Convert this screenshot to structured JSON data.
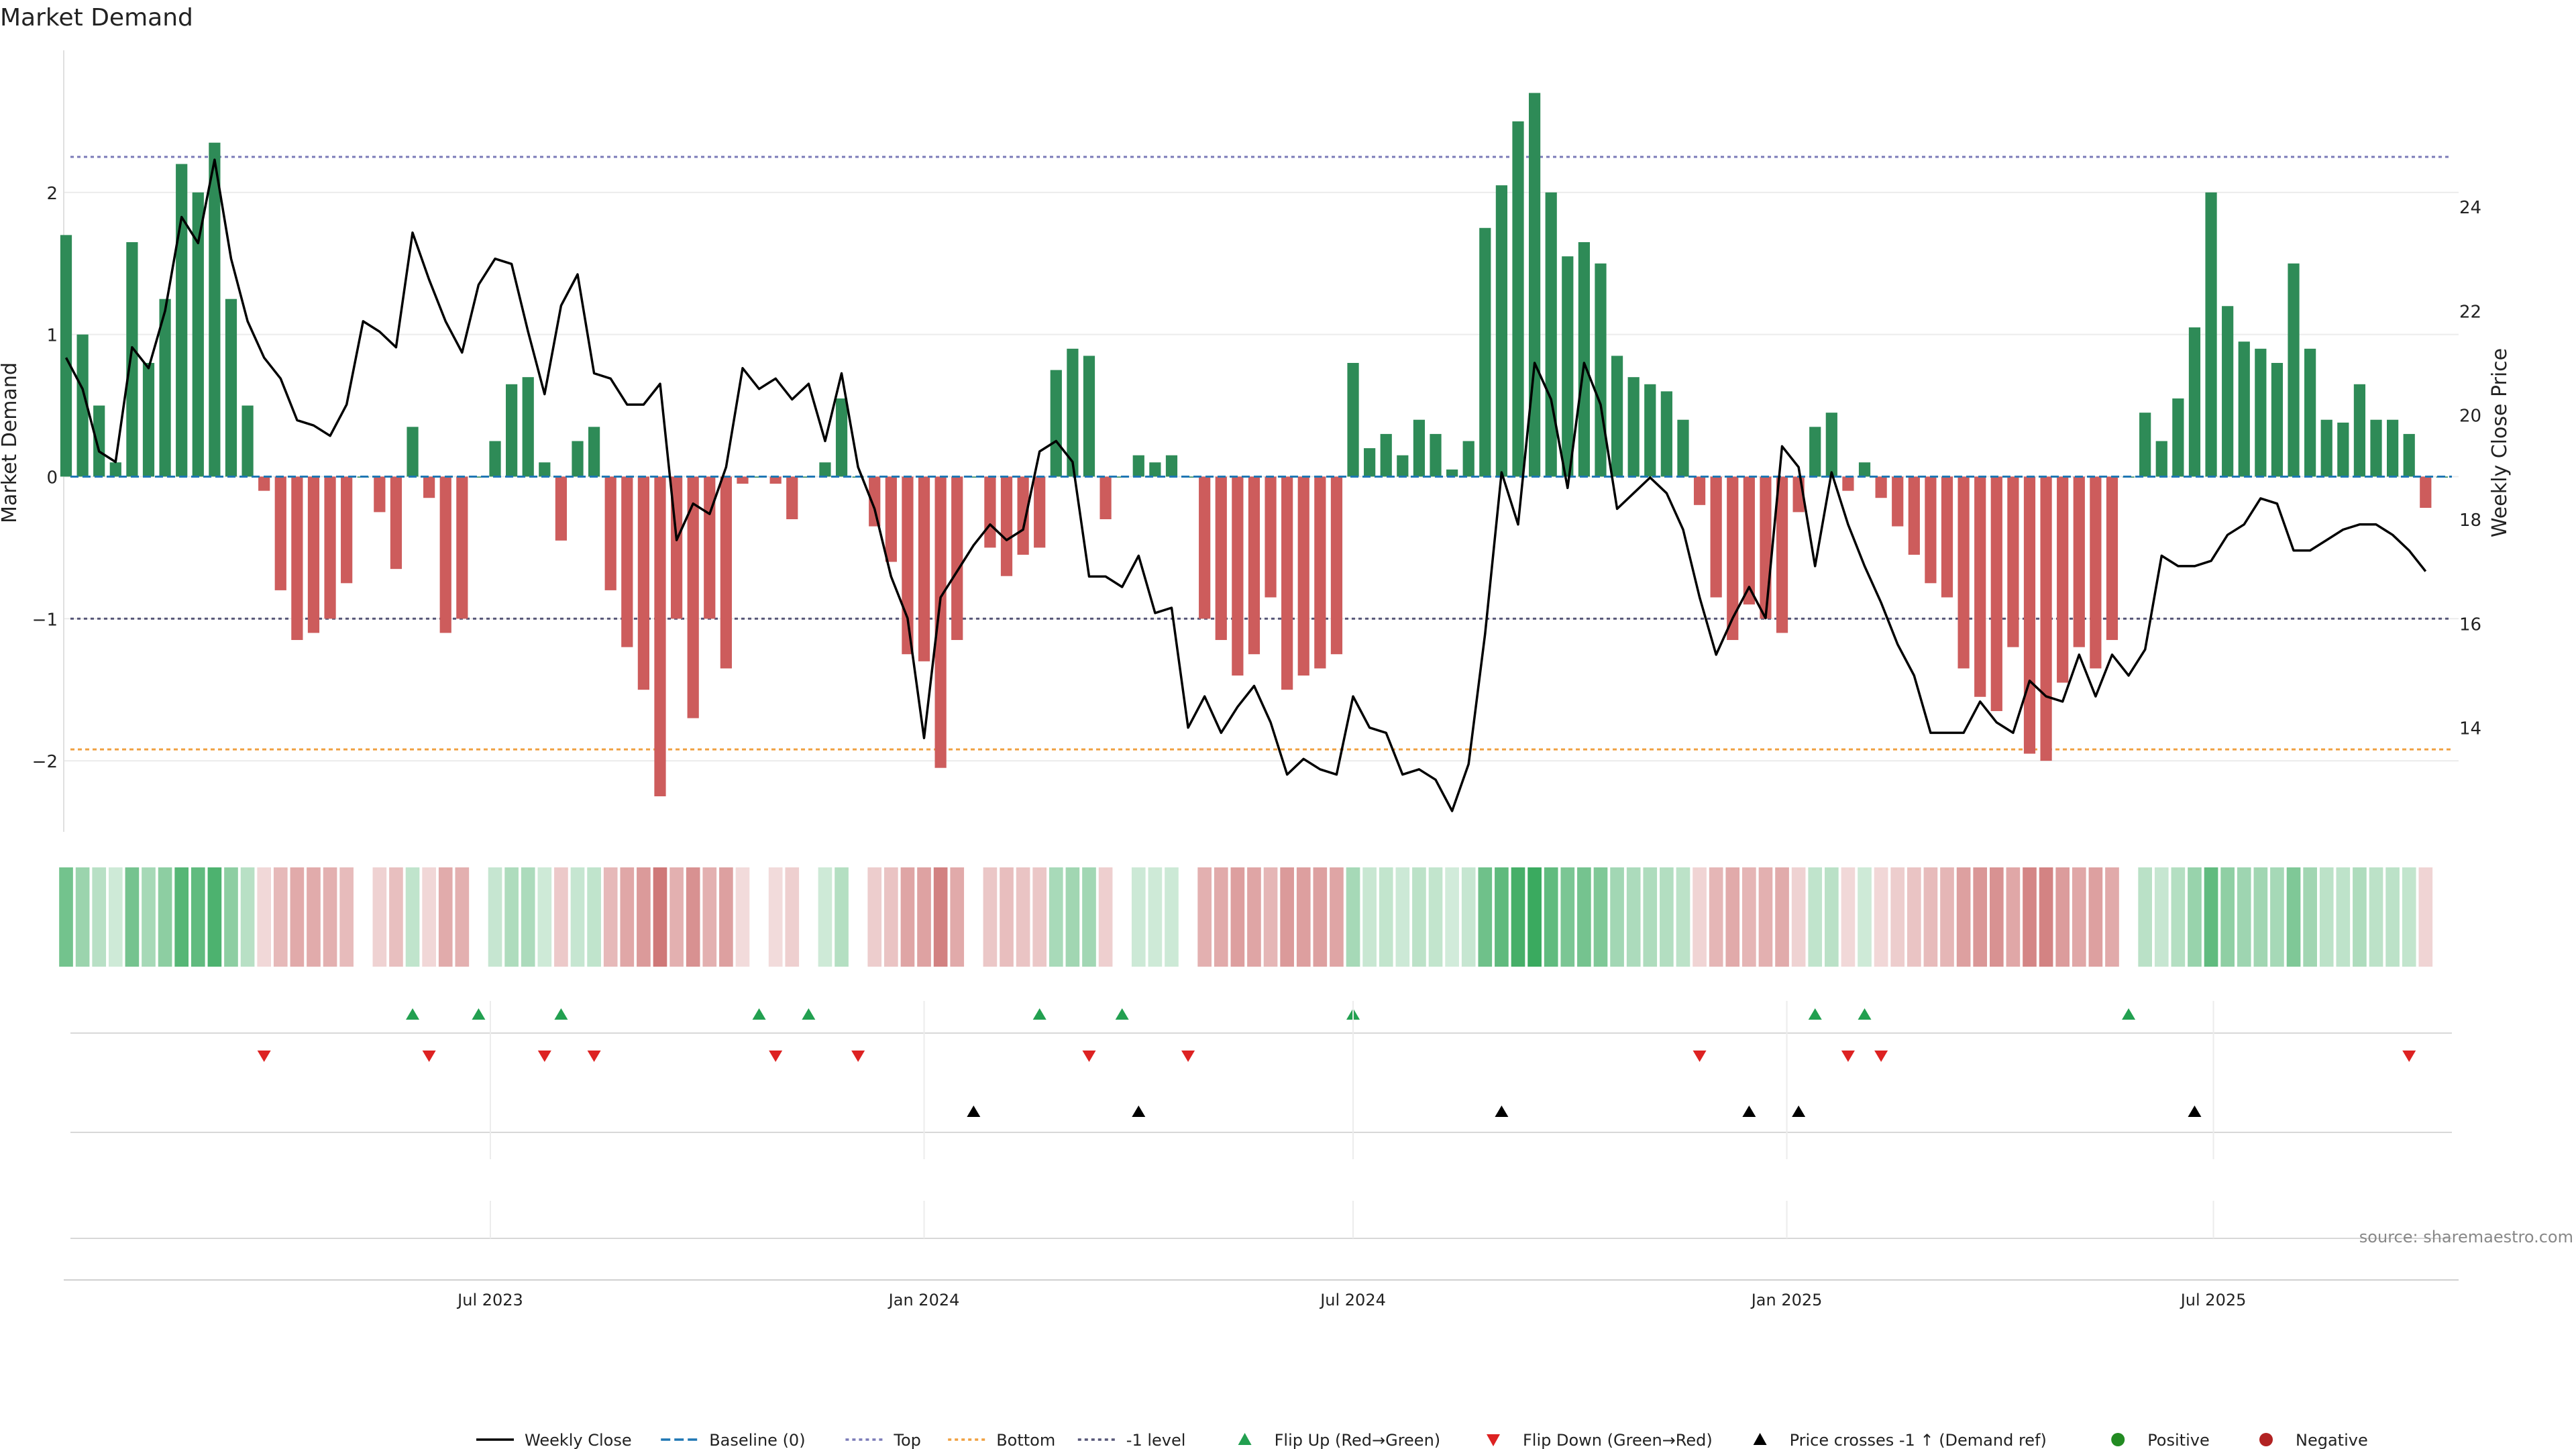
{
  "chart_data": {
    "type": "bar",
    "title": "Market Demand",
    "ylabel_left": "Market Demand",
    "ylabel_right": "Weekly Close Price",
    "source": "source: sharemaestro.com",
    "x_axis": {
      "start": "2023-01-01",
      "end": "2025-10-13",
      "ticks": [
        {
          "date": "2023-07-01",
          "label": "Jul 2023"
        },
        {
          "date": "2024-01-01",
          "label": "Jan 2024"
        },
        {
          "date": "2024-07-01",
          "label": "Jul 2024"
        },
        {
          "date": "2025-01-01",
          "label": "Jan 2025"
        },
        {
          "date": "2025-07-01",
          "label": "Jul 2025"
        }
      ]
    },
    "y_left": {
      "range": [
        -2.5,
        3.0
      ],
      "ticks": [
        -2,
        -1,
        0,
        1,
        2
      ]
    },
    "y_right": {
      "range": [
        12.0,
        27.0
      ],
      "ticks": [
        14,
        16,
        18,
        20,
        22,
        24
      ]
    },
    "reference_lines": {
      "top": 2.25,
      "bottom": -1.92,
      "minus_one": -1.0,
      "baseline": 0
    },
    "colors": {
      "positive": "#2e8b57",
      "negative": "#cd5c5c",
      "price_line": "#000000",
      "top_line": "#7b7bb8",
      "bottom_line": "#f0a040",
      "minus_one_line": "#555577",
      "flip_up": "#22a050",
      "flip_down": "#dd2222",
      "cross": "#000000",
      "positive_dot": "#228b22",
      "negative_dot": "#b22222"
    },
    "weeks": [
      "2023-01-02",
      "2023-01-09",
      "2023-01-16",
      "2023-01-23",
      "2023-01-30",
      "2023-02-06",
      "2023-02-13",
      "2023-02-20",
      "2023-02-27",
      "2023-03-06",
      "2023-03-13",
      "2023-03-20",
      "2023-03-27",
      "2023-04-03",
      "2023-04-10",
      "2023-04-17",
      "2023-04-24",
      "2023-05-01",
      "2023-05-08",
      "2023-05-15",
      "2023-05-22",
      "2023-05-29",
      "2023-06-05",
      "2023-06-12",
      "2023-06-19",
      "2023-06-26",
      "2023-07-03",
      "2023-07-10",
      "2023-07-17",
      "2023-07-24",
      "2023-07-31",
      "2023-08-07",
      "2023-08-14",
      "2023-08-21",
      "2023-08-28",
      "2023-09-04",
      "2023-09-11",
      "2023-09-18",
      "2023-09-25",
      "2023-10-02",
      "2023-10-09",
      "2023-10-16",
      "2023-10-23",
      "2023-10-30",
      "2023-11-06",
      "2023-11-13",
      "2023-11-20",
      "2023-11-27",
      "2023-12-04",
      "2023-12-11",
      "2023-12-18",
      "2023-12-25",
      "2024-01-01",
      "2024-01-08",
      "2024-01-15",
      "2024-01-22",
      "2024-01-29",
      "2024-02-05",
      "2024-02-12",
      "2024-02-19",
      "2024-02-26",
      "2024-03-04",
      "2024-03-11",
      "2024-03-18",
      "2024-03-25",
      "2024-04-01",
      "2024-04-08",
      "2024-04-15",
      "2024-04-22",
      "2024-04-29",
      "2024-05-06",
      "2024-05-13",
      "2024-05-20",
      "2024-05-27",
      "2024-06-03",
      "2024-06-10",
      "2024-06-17",
      "2024-06-24",
      "2024-07-01",
      "2024-07-08",
      "2024-07-15",
      "2024-07-22",
      "2024-07-29",
      "2024-08-05",
      "2024-08-12",
      "2024-08-19",
      "2024-08-26",
      "2024-09-02",
      "2024-09-09",
      "2024-09-16",
      "2024-09-23",
      "2024-09-30",
      "2024-10-07",
      "2024-10-14",
      "2024-10-21",
      "2024-10-28",
      "2024-11-04",
      "2024-11-11",
      "2024-11-18",
      "2024-11-25",
      "2024-12-02",
      "2024-12-09",
      "2024-12-16",
      "2024-12-23",
      "2024-12-30",
      "2025-01-06",
      "2025-01-13",
      "2025-01-20",
      "2025-01-27",
      "2025-02-03",
      "2025-02-10",
      "2025-02-17",
      "2025-02-24",
      "2025-03-03",
      "2025-03-10",
      "2025-03-17",
      "2025-03-24",
      "2025-03-31",
      "2025-04-07",
      "2025-04-14",
      "2025-04-21",
      "2025-04-28",
      "2025-05-05",
      "2025-05-12",
      "2025-05-19",
      "2025-05-26",
      "2025-06-02",
      "2025-06-09",
      "2025-06-16",
      "2025-06-23",
      "2025-06-30",
      "2025-07-07",
      "2025-07-14",
      "2025-07-21",
      "2025-07-28",
      "2025-08-04",
      "2025-08-11",
      "2025-08-18",
      "2025-08-25",
      "2025-09-01",
      "2025-09-08",
      "2025-09-15",
      "2025-09-22",
      "2025-09-29",
      "2025-10-06",
      "2025-10-13"
    ],
    "demand": [
      1.7,
      1.0,
      0.5,
      0.1,
      1.65,
      0.8,
      1.25,
      2.2,
      2.0,
      2.35,
      1.25,
      0.5,
      -0.1,
      -0.8,
      -1.15,
      -1.1,
      -1.0,
      -0.75,
      0.0,
      -0.25,
      -0.65,
      0.35,
      -0.15,
      -1.1,
      -1.0,
      0.0,
      0.25,
      0.65,
      0.7,
      0.1,
      -0.45,
      0.25,
      0.35,
      -0.8,
      -1.2,
      -1.5,
      -2.25,
      -1.0,
      -1.7,
      -1.0,
      -1.35,
      -0.05,
      0.0,
      -0.05,
      -0.3,
      0.0,
      0.1,
      0.55,
      0.0,
      -0.35,
      -0.6,
      -1.25,
      -1.3,
      -2.05,
      -1.15,
      0.0,
      -0.5,
      -0.7,
      -0.55,
      -0.5,
      0.75,
      0.9,
      0.85,
      -0.3,
      0.0,
      0.15,
      0.1,
      0.15,
      0.0,
      -1.0,
      -1.15,
      -1.4,
      -1.25,
      -0.85,
      -1.5,
      -1.4,
      -1.35,
      -1.25,
      0.8,
      0.2,
      0.3,
      0.15,
      0.4,
      0.3,
      0.05,
      0.25,
      1.75,
      2.05,
      2.5,
      2.7,
      2.0,
      1.55,
      1.65,
      1.5,
      0.85,
      0.7,
      0.65,
      0.6,
      0.4,
      -0.2,
      -0.85,
      -1.15,
      -0.9,
      -1.0,
      -1.1,
      -0.25,
      0.35,
      0.45,
      -0.1,
      0.1,
      -0.15,
      -0.35,
      -0.55,
      -0.75,
      -0.85,
      -1.35,
      -1.55,
      -1.65,
      -1.2,
      -1.95,
      -2.0,
      -1.45,
      -1.2,
      -1.35,
      -1.15,
      0.0,
      0.45,
      0.25,
      0.55,
      1.05,
      2.0,
      1.2,
      0.95,
      0.9,
      0.8,
      1.5,
      0.9,
      0.4,
      0.38,
      0.65,
      0.4,
      0.4,
      0.3,
      -0.22,
      0.0
    ],
    "price": [
      21.1,
      20.5,
      19.3,
      19.1,
      21.3,
      20.9,
      22.0,
      23.8,
      23.3,
      24.9,
      23.0,
      21.8,
      21.1,
      20.7,
      19.9,
      19.8,
      19.6,
      20.2,
      21.8,
      21.6,
      21.3,
      23.5,
      22.6,
      21.8,
      21.2,
      22.5,
      23.0,
      22.9,
      21.6,
      20.4,
      22.1,
      22.7,
      20.8,
      20.7,
      20.2,
      20.2,
      20.6,
      17.6,
      18.3,
      18.1,
      19.0,
      20.9,
      20.5,
      20.7,
      20.3,
      20.6,
      19.5,
      20.8,
      19.0,
      18.2,
      16.9,
      16.1,
      13.8,
      16.5,
      17.0,
      17.5,
      17.9,
      17.6,
      17.8,
      19.3,
      19.5,
      19.1,
      16.9,
      16.9,
      16.7,
      17.3,
      16.2,
      16.3,
      14.0,
      14.6,
      13.9,
      14.4,
      14.8,
      14.1,
      13.1,
      13.4,
      13.2,
      13.1,
      14.6,
      14.0,
      13.9,
      13.1,
      13.2,
      13.0,
      12.4,
      13.3,
      15.8,
      18.9,
      17.9,
      21.0,
      20.3,
      18.6,
      21.0,
      20.2,
      18.2,
      18.5,
      18.8,
      18.5,
      17.8,
      16.5,
      15.4,
      16.1,
      16.7,
      16.1,
      19.4,
      19.0,
      17.1,
      18.9,
      17.9,
      17.1,
      16.4,
      15.6,
      15.0,
      13.9,
      13.9,
      13.9,
      14.5,
      14.1,
      13.9,
      14.9,
      14.6,
      14.5,
      15.4,
      14.6,
      15.4,
      15.0,
      15.5,
      17.3,
      17.1,
      17.1,
      17.2,
      17.7,
      17.9,
      18.4,
      18.3,
      17.4,
      17.4,
      17.6,
      17.8,
      17.9,
      17.9,
      17.7,
      17.4,
      17.0
    ],
    "flip_up_weeks": [
      21,
      25,
      30,
      42,
      45,
      59,
      64,
      78,
      106,
      109,
      125
    ],
    "flip_down_weeks": [
      12,
      22,
      29,
      32,
      43,
      48,
      62,
      68,
      99,
      108,
      110,
      142
    ],
    "price_cross_weeks": [
      55,
      65,
      87,
      102,
      105,
      129
    ],
    "legend": [
      {
        "label": "Weekly Close",
        "kind": "line-solid",
        "color": "#000000"
      },
      {
        "label": "Baseline (0)",
        "kind": "line-dash",
        "color": "#1f77b4"
      },
      {
        "label": "Top",
        "kind": "line-dot",
        "color": "#7b7bb8"
      },
      {
        "label": "Bottom",
        "kind": "line-dot",
        "color": "#f0a040"
      },
      {
        "label": "-1 level",
        "kind": "line-dot",
        "color": "#555577"
      },
      {
        "label": "Flip Up (Red→Green)",
        "kind": "tri-up",
        "color": "#22a050"
      },
      {
        "label": "Flip Down (Green→Red)",
        "kind": "tri-down",
        "color": "#dd2222"
      },
      {
        "label": "Price crosses -1 ↑ (Demand ref)",
        "kind": "tri-up",
        "color": "#000000"
      },
      {
        "label": "Positive",
        "kind": "dot",
        "color": "#228b22"
      },
      {
        "label": "Negative",
        "kind": "dot",
        "color": "#b22222"
      }
    ]
  }
}
